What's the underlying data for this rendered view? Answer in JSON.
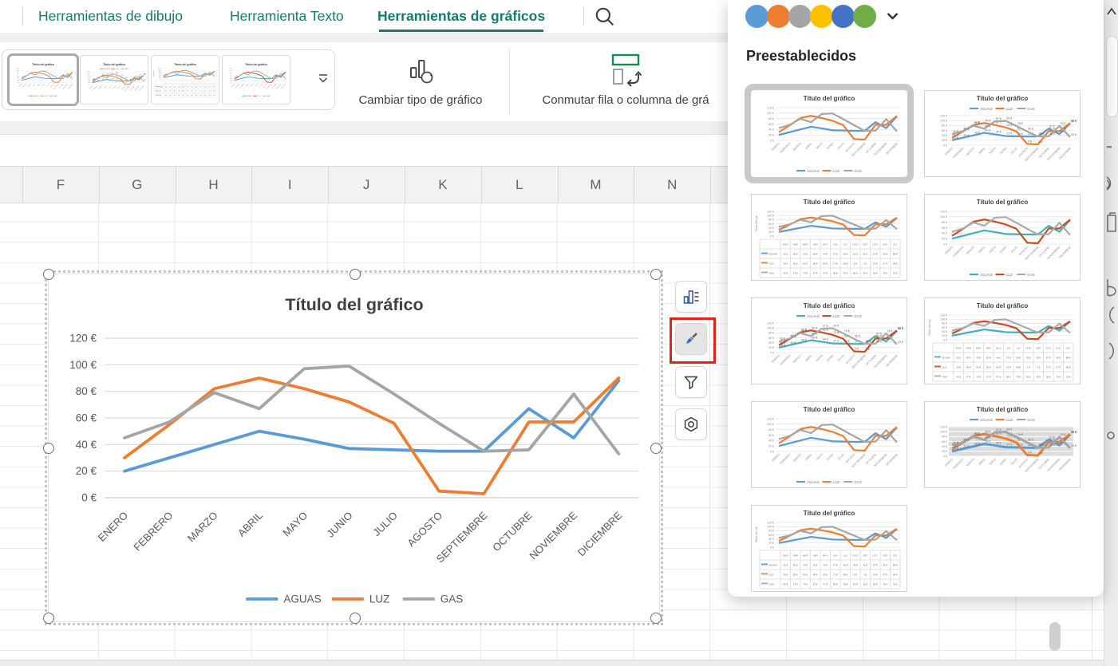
{
  "ribbon": {
    "tabs": [
      {
        "label": "Herramientas de dibujo",
        "active": false
      },
      {
        "label": "Herramienta Texto",
        "active": false
      },
      {
        "label": "Herramientas de gráficos",
        "active": true
      }
    ],
    "accent_color": "#137c6c",
    "buttons": {
      "change_type": "Cambiar tipo de gráfico",
      "switch_row_col": "Conmutar fila o columna de grá"
    },
    "gallery_variants": [
      "basic",
      "labels-top",
      "table",
      "alt-basic"
    ]
  },
  "sheet": {
    "columns": [
      "F",
      "G",
      "H",
      "I",
      "J",
      "K",
      "L",
      "M",
      "N"
    ]
  },
  "chart_data": {
    "type": "line",
    "title": "Título del gráfico",
    "categories": [
      "ENERO",
      "FEBRERO",
      "MARZO",
      "ABRIL",
      "MAYO",
      "JUNIO",
      "JULIO",
      "AGOSTO",
      "SEPTIEMBRE",
      "OCTUBRE",
      "NOVIEMBRE",
      "DICIEMBRE"
    ],
    "series": [
      {
        "name": "AGUAS",
        "color": "#5B9BD5",
        "values": [
          20,
          30,
          40,
          50,
          44,
          37,
          36,
          35,
          35,
          67,
          45,
          88
        ]
      },
      {
        "name": "LUZ",
        "color": "#ED7D31",
        "values": [
          30,
          55,
          82,
          90,
          82,
          72,
          56,
          5,
          3,
          57,
          57,
          90
        ]
      },
      {
        "name": "GAS",
        "color": "#A5A5A5",
        "values": [
          45,
          57,
          79,
          67,
          97,
          99,
          78,
          56,
          35,
          36,
          78,
          33
        ]
      }
    ],
    "y_ticks": [
      "120 €",
      "100 €",
      "80 €",
      "60 €",
      "40 €",
      "20 €",
      "0 €"
    ],
    "ylim": [
      0,
      120
    ],
    "legend_position": "bottom",
    "grid": true
  },
  "chart_buttons": [
    {
      "name": "chart-elements",
      "active": false
    },
    {
      "name": "chart-styles",
      "active": true,
      "highlight_color": "#e0241b"
    },
    {
      "name": "chart-filters",
      "active": false
    },
    {
      "name": "chart-settings",
      "active": false
    }
  ],
  "panel": {
    "heading": "Preestablecidos",
    "palette": [
      "#5B9BD5",
      "#ED7D31",
      "#A5A5A5",
      "#FFC000",
      "#4472C4",
      "#70AD47"
    ],
    "alt_palette": [
      "#41B0BC",
      "#CE4A21",
      "#ABABAB"
    ],
    "axis_title": "Título del eje",
    "preset_variants": [
      {
        "variant": "basic",
        "selected": true
      },
      {
        "variant": "labels-top",
        "selected": false
      },
      {
        "variant": "table",
        "selected": false
      },
      {
        "variant": "alt-basic",
        "selected": false
      },
      {
        "variant": "alt-labels-top",
        "selected": false
      },
      {
        "variant": "alt-table",
        "selected": false
      },
      {
        "variant": "basic",
        "selected": false
      },
      {
        "variant": "gray-labels",
        "selected": false
      },
      {
        "variant": "table",
        "selected": false
      }
    ]
  }
}
